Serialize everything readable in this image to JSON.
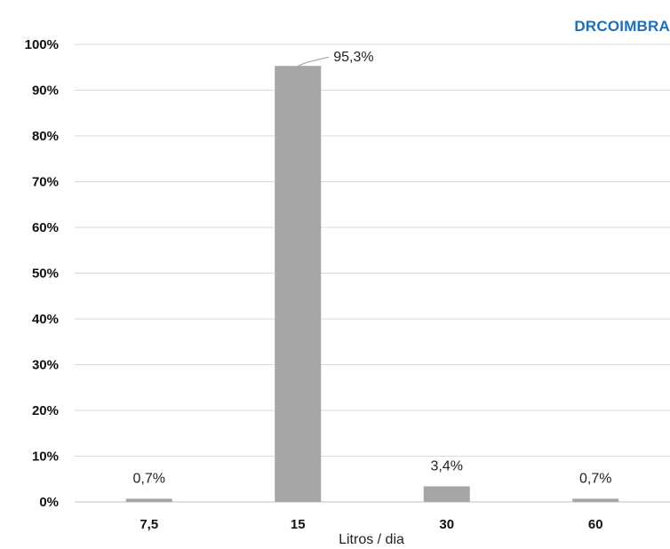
{
  "brand": {
    "text": "DRCOIMBRA",
    "color": "#1f6fb7"
  },
  "chart_data": {
    "type": "bar",
    "categories": [
      "7,5",
      "15",
      "30",
      "60"
    ],
    "values": [
      0.7,
      95.3,
      3.4,
      0.7
    ],
    "data_labels": [
      "0,7%",
      "95,3%",
      "3,4%",
      "0,7%"
    ],
    "title": "",
    "xlabel": "Litros / dia",
    "ylabel": "",
    "ylim": [
      0,
      100
    ],
    "yticks": [
      0,
      10,
      20,
      30,
      40,
      50,
      60,
      70,
      80,
      90,
      100
    ],
    "ytick_labels": [
      "0%",
      "10%",
      "20%",
      "30%",
      "40%",
      "50%",
      "60%",
      "70%",
      "80%",
      "90%",
      "100%"
    ],
    "grid": true,
    "legend": "none",
    "bar_color": "#a6a6a6",
    "grid_color": "#d9d9d9"
  }
}
